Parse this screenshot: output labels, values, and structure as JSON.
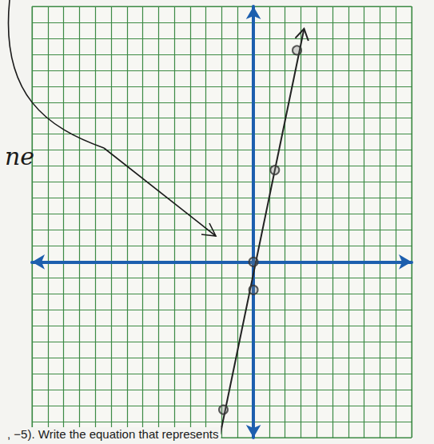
{
  "chart_data": {
    "type": "line",
    "xlim": [
      -14,
      10
    ],
    "ylim": [
      -11,
      16
    ],
    "xticks": [
      -14,
      -13,
      -12,
      -11,
      -10,
      -9,
      -8,
      -7,
      -6,
      -5,
      -4,
      -3,
      -2,
      -1,
      0,
      1,
      2,
      3,
      4,
      5,
      6,
      7,
      8,
      9,
      10
    ],
    "yticks": [
      -11,
      -10,
      -9,
      -8,
      -7,
      -6,
      -5,
      -4,
      -3,
      -2,
      -1,
      0,
      1,
      2,
      3,
      4,
      5,
      6,
      7,
      8,
      9,
      10,
      11,
      12,
      13,
      14,
      15,
      16
    ],
    "grid": true,
    "tick_labels": false,
    "series": [
      {
        "type": "line",
        "color": "#222222",
        "line_style": "solid",
        "x": [
          -2.1,
          3.2
        ],
        "values": [
          -10.8,
          14.6
        ]
      },
      {
        "type": "scatter",
        "color": "#333333",
        "marker": "circle",
        "x": [
          -1.9,
          0,
          0,
          1.35,
          2.75
        ],
        "values": [
          -9.25,
          0,
          -1.75,
          5.75,
          13.25
        ]
      }
    ],
    "annotations": [
      "ne",
      ", −5). Write the equation that represents"
    ]
  }
}
